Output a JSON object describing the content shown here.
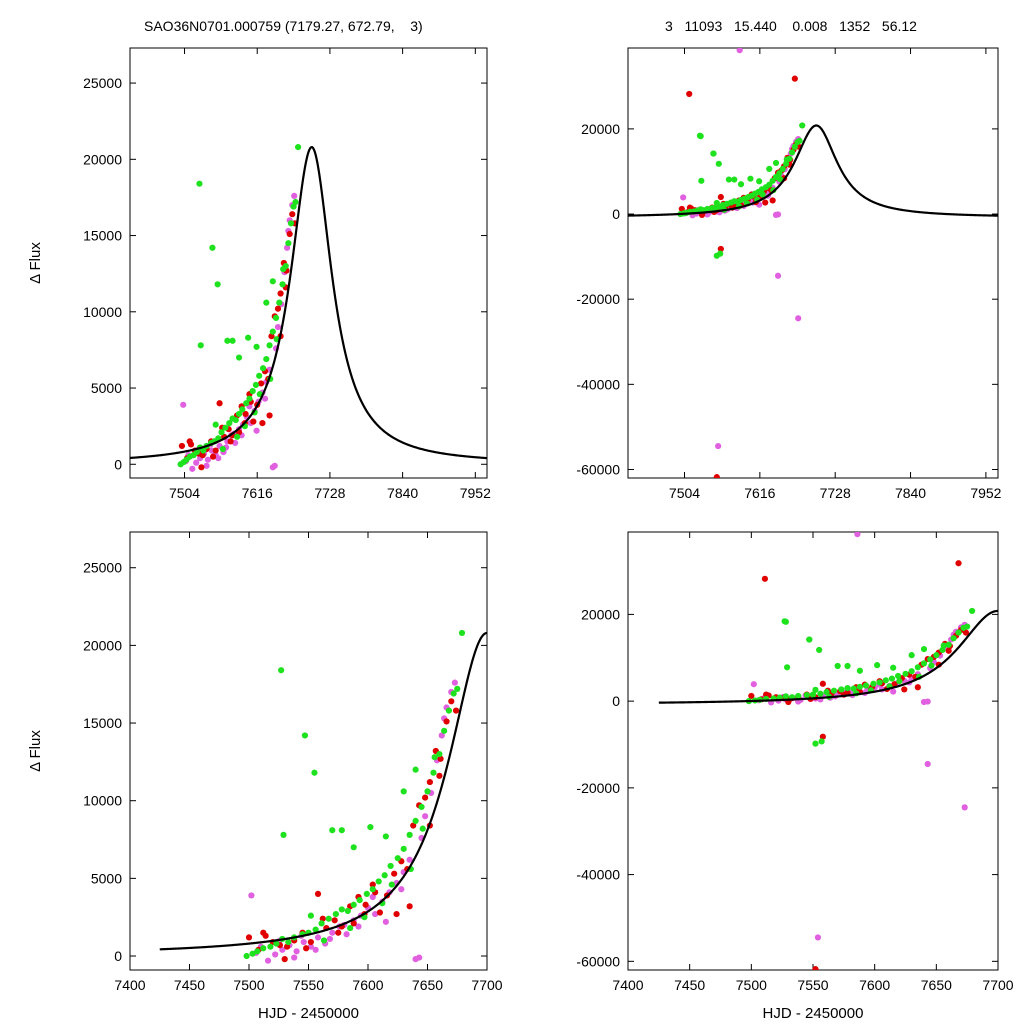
{
  "header": {
    "left_title": "SAO36N0701.000759 (7179.27, 672.79,    3)",
    "right_title": "3   11093   15.440    0.008   1352   56.12"
  },
  "colors": {
    "green": "#1de21d",
    "red": "#e00000",
    "magenta": "#e060e0",
    "model": "#000000",
    "axes": "#000000"
  },
  "chart_data": [
    {
      "id": "top-left",
      "type": "scatter",
      "xlabel": "",
      "ylabel": "Δ Flux",
      "xlim": [
        7420,
        7970
      ],
      "ylim": [
        -900,
        27300
      ],
      "xticks": [
        7504,
        7616,
        7728,
        7840,
        7952
      ],
      "yticks": [
        0,
        5000,
        10000,
        15000,
        20000,
        25000
      ],
      "model": {
        "t0": 7700,
        "peak": 20800,
        "width_left": 40,
        "width_right": 38
      },
      "points": "main"
    },
    {
      "id": "top-right",
      "type": "scatter",
      "xlabel": "",
      "ylabel": "",
      "xlim": [
        7420,
        7970
      ],
      "ylim": [
        -62000,
        39000
      ],
      "xticks": [
        7504,
        7616,
        7728,
        7840,
        7952
      ],
      "yticks": [
        -60000,
        -40000,
        -20000,
        0,
        20000
      ],
      "model": {
        "t0": 7700,
        "peak": 20800,
        "width_left": 40,
        "width_right": 38,
        "baseline": -800
      },
      "points": "full"
    },
    {
      "id": "bottom-left",
      "type": "scatter",
      "xlabel": "HJD - 2450000",
      "ylabel": "Δ Flux",
      "xlim": [
        7400,
        7700
      ],
      "ylim": [
        -900,
        27300
      ],
      "xticks": [
        7400,
        7450,
        7500,
        7550,
        7600,
        7650,
        7700
      ],
      "yticks": [
        0,
        5000,
        10000,
        15000,
        20000,
        25000
      ],
      "model": {
        "t0": 7700,
        "peak": 20800,
        "width_left": 40,
        "width_right": 38,
        "x_start": 7425
      },
      "points": "main"
    },
    {
      "id": "bottom-right",
      "type": "scatter",
      "xlabel": "HJD - 2450000",
      "ylabel": "",
      "xlim": [
        7400,
        7700
      ],
      "ylim": [
        -62000,
        39000
      ],
      "xticks": [
        7400,
        7450,
        7500,
        7550,
        7600,
        7650,
        7700
      ],
      "yticks": [
        -60000,
        -40000,
        -20000,
        0,
        20000
      ],
      "model": {
        "t0": 7700,
        "peak": 20800,
        "width_left": 40,
        "width_right": 38,
        "baseline": -800,
        "x_start": 7425
      },
      "points": "full"
    }
  ],
  "series": {
    "green": [
      [
        7498,
        0
      ],
      [
        7503,
        150
      ],
      [
        7507,
        300
      ],
      [
        7512,
        500
      ],
      [
        7518,
        600
      ],
      [
        7523,
        800
      ],
      [
        7528,
        1100
      ],
      [
        7533,
        900
      ],
      [
        7538,
        1200
      ],
      [
        7545,
        1400
      ],
      [
        7550,
        1500
      ],
      [
        7556,
        1700
      ],
      [
        7561,
        2100
      ],
      [
        7567,
        2400
      ],
      [
        7573,
        2700
      ],
      [
        7578,
        3000
      ],
      [
        7583,
        2900
      ],
      [
        7588,
        3300
      ],
      [
        7593,
        3600
      ],
      [
        7599,
        4000
      ],
      [
        7604,
        4300
      ],
      [
        7609,
        4800
      ],
      [
        7614,
        5200
      ],
      [
        7619,
        5800
      ],
      [
        7625,
        6300
      ],
      [
        7630,
        6900
      ],
      [
        7635,
        7800
      ],
      [
        7640,
        8700
      ],
      [
        7645,
        9600
      ],
      [
        7650,
        10600
      ],
      [
        7655,
        11800
      ],
      [
        7660,
        13000
      ],
      [
        7664,
        14500
      ],
      [
        7668,
        15800
      ],
      [
        7672,
        16900
      ],
      [
        7675,
        17200
      ],
      [
        7527,
        18400
      ],
      [
        7529,
        7800
      ],
      [
        7547,
        14200
      ],
      [
        7555,
        11800
      ],
      [
        7570,
        8100
      ],
      [
        7578,
        8100
      ],
      [
        7588,
        7000
      ],
      [
        7602,
        8300
      ],
      [
        7615,
        7700
      ],
      [
        7630,
        10600
      ],
      [
        7640,
        12000
      ],
      [
        7679,
        20800
      ],
      [
        7552,
        2600
      ],
      [
        7563,
        1000
      ],
      [
        7585,
        1800
      ],
      [
        7597,
        2500
      ],
      [
        7612,
        3400
      ],
      [
        7620,
        4600
      ],
      [
        7636,
        5600
      ],
      [
        7646,
        8200
      ],
      [
        7656,
        12800
      ]
    ],
    "red": [
      [
        7500,
        1200
      ],
      [
        7508,
        400
      ],
      [
        7514,
        1300
      ],
      [
        7520,
        900
      ],
      [
        7526,
        700
      ],
      [
        7532,
        600
      ],
      [
        7538,
        1000
      ],
      [
        7545,
        1500
      ],
      [
        7552,
        900
      ],
      [
        7558,
        4000
      ],
      [
        7565,
        1800
      ],
      [
        7572,
        2300
      ],
      [
        7578,
        1900
      ],
      [
        7585,
        3200
      ],
      [
        7592,
        3800
      ],
      [
        7598,
        3300
      ],
      [
        7604,
        4600
      ],
      [
        7610,
        2800
      ],
      [
        7616,
        3900
      ],
      [
        7622,
        5300
      ],
      [
        7628,
        6100
      ],
      [
        7633,
        5600
      ],
      [
        7638,
        8400
      ],
      [
        7643,
        9700
      ],
      [
        7648,
        10200
      ],
      [
        7652,
        11200
      ],
      [
        7657,
        13200
      ],
      [
        7661,
        12700
      ],
      [
        7666,
        15100
      ],
      [
        7670,
        16400
      ],
      [
        7674,
        15800
      ],
      [
        7512,
        1500
      ],
      [
        7530,
        -200
      ],
      [
        7548,
        500
      ],
      [
        7562,
        2400
      ],
      [
        7575,
        1500
      ],
      [
        7588,
        2100
      ],
      [
        7597,
        2700
      ],
      [
        7606,
        4100
      ],
      [
        7624,
        2700
      ],
      [
        7635,
        3200
      ],
      [
        7652,
        8400
      ],
      [
        7660,
        11600
      ]
    ],
    "magenta": [
      [
        7502,
        3900
      ],
      [
        7506,
        200
      ],
      [
        7510,
        600
      ],
      [
        7516,
        -300
      ],
      [
        7522,
        100
      ],
      [
        7528,
        400
      ],
      [
        7534,
        700
      ],
      [
        7540,
        300
      ],
      [
        7546,
        900
      ],
      [
        7552,
        600
      ],
      [
        7558,
        1200
      ],
      [
        7564,
        800
      ],
      [
        7570,
        1500
      ],
      [
        7576,
        1900
      ],
      [
        7582,
        1400
      ],
      [
        7588,
        2300
      ],
      [
        7594,
        2600
      ],
      [
        7600,
        3100
      ],
      [
        7606,
        2700
      ],
      [
        7612,
        3500
      ],
      [
        7618,
        4100
      ],
      [
        7624,
        4700
      ],
      [
        7630,
        5400
      ],
      [
        7635,
        6200
      ],
      [
        7640,
        -200
      ],
      [
        7643,
        -100
      ],
      [
        7648,
        9000
      ],
      [
        7653,
        10500
      ],
      [
        7658,
        12600
      ],
      [
        7662,
        14200
      ],
      [
        7666,
        16000
      ],
      [
        7670,
        17000
      ],
      [
        7673,
        17600
      ],
      [
        7526,
        1000
      ],
      [
        7538,
        -100
      ],
      [
        7544,
        1300
      ],
      [
        7556,
        400
      ],
      [
        7568,
        1100
      ],
      [
        7580,
        2000
      ],
      [
        7592,
        1900
      ],
      [
        7604,
        3800
      ],
      [
        7615,
        2200
      ],
      [
        7628,
        4300
      ],
      [
        7645,
        7600
      ],
      [
        7664,
        15300
      ]
    ],
    "outliers_magenta": [
      [
        7554,
        -54500
      ],
      [
        7586,
        38500
      ],
      [
        7643,
        -14500
      ],
      [
        7673,
        -24500
      ]
    ],
    "outliers_red": [
      [
        7511,
        28200
      ],
      [
        7558,
        -8200
      ],
      [
        7668,
        31800
      ],
      [
        7552,
        -61800
      ]
    ],
    "outliers_green": [
      [
        7528,
        18300
      ],
      [
        7552,
        -9800
      ],
      [
        7557,
        -9300
      ],
      [
        7547,
        14200
      ]
    ]
  }
}
